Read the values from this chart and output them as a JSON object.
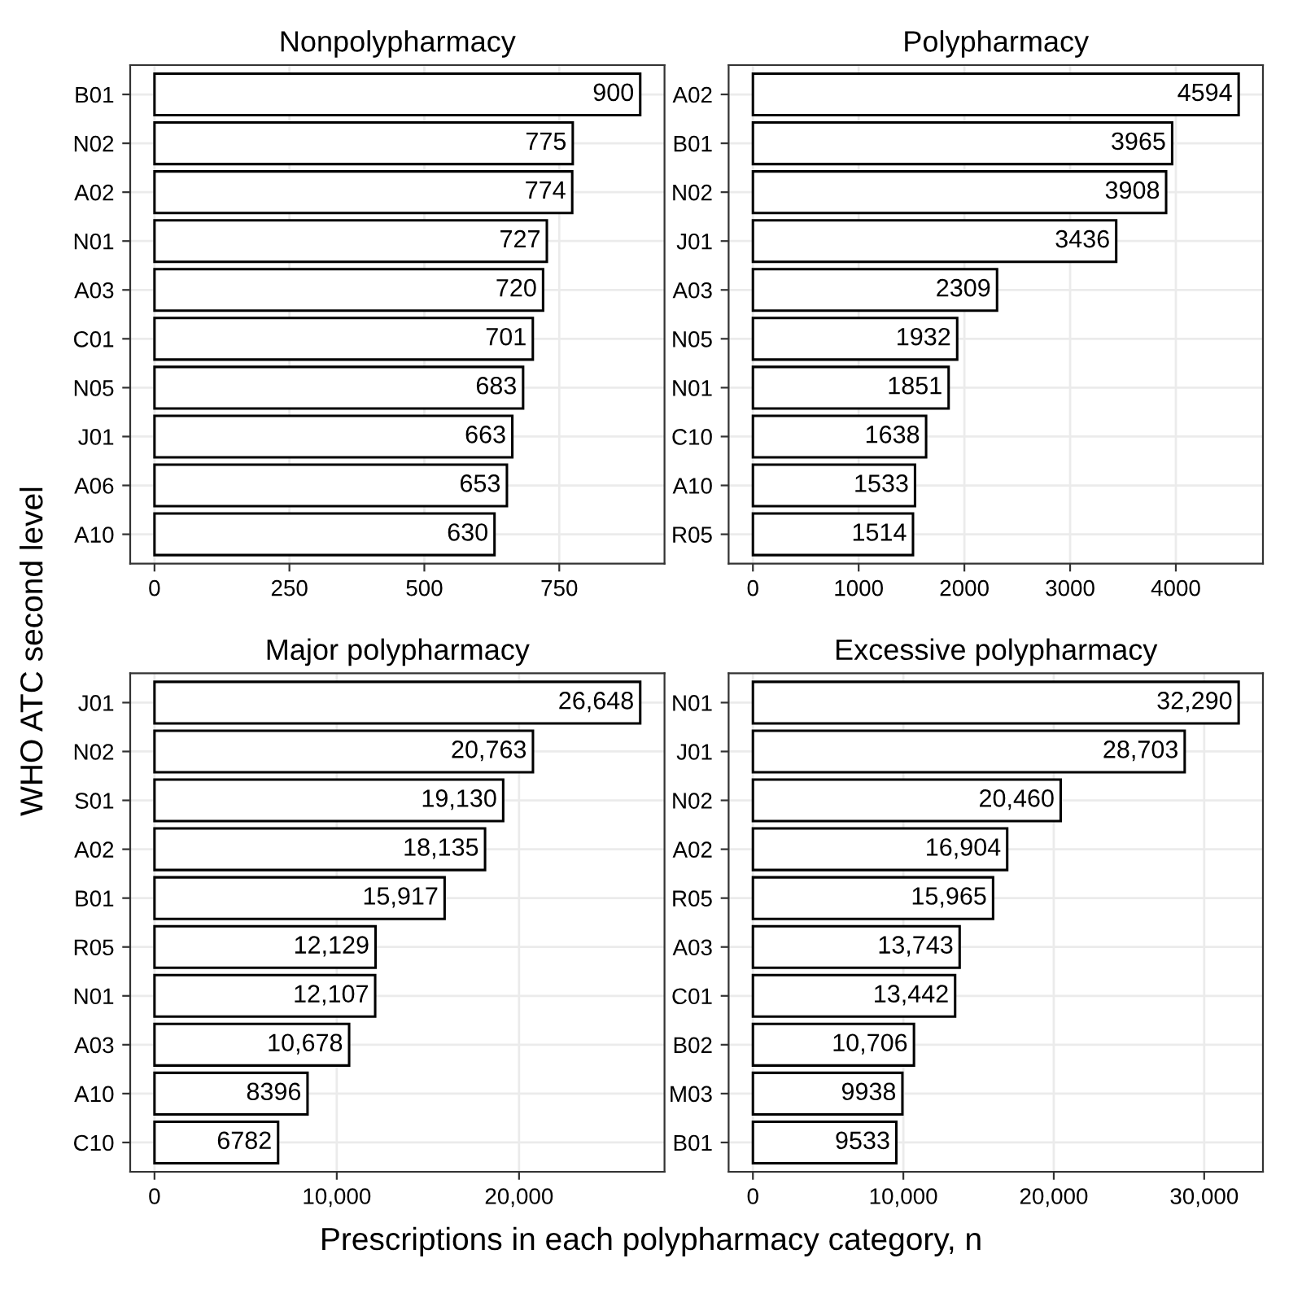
{
  "chart_data": [
    {
      "type": "bar",
      "orientation": "horizontal",
      "title": "Nonpolypharmacy",
      "xlabel": "Prescriptions in each polypharmacy category, n",
      "ylabel": "WHO ATC second level",
      "categories": [
        "B01",
        "N02",
        "A02",
        "N01",
        "A03",
        "C01",
        "N05",
        "J01",
        "A06",
        "A10"
      ],
      "values": [
        900,
        775,
        774,
        727,
        720,
        701,
        683,
        663,
        653,
        630
      ],
      "value_labels": [
        "900",
        "775",
        "774",
        "727",
        "720",
        "701",
        "683",
        "663",
        "653",
        "630"
      ],
      "color": "#ffffff",
      "xlim": [
        -45,
        945
      ],
      "xticks": [
        0,
        250,
        500,
        750
      ],
      "grid": true
    },
    {
      "type": "bar",
      "orientation": "horizontal",
      "title": "Polypharmacy",
      "categories": [
        "A02",
        "B01",
        "N02",
        "J01",
        "A03",
        "N05",
        "N01",
        "C10",
        "A10",
        "R05"
      ],
      "values": [
        4594,
        3965,
        3908,
        3436,
        2309,
        1932,
        1851,
        1638,
        1533,
        1514
      ],
      "value_labels": [
        "4594",
        "3965",
        "3908",
        "3436",
        "2309",
        "1932",
        "1851",
        "1638",
        "1533",
        "1514"
      ],
      "color": "#ffffff",
      "xlim": [
        -229.7,
        4823.7
      ],
      "xticks": [
        0,
        1000,
        2000,
        3000,
        4000
      ],
      "grid": true
    },
    {
      "type": "bar",
      "orientation": "horizontal",
      "title": "Major polypharmacy",
      "categories": [
        "J01",
        "N02",
        "S01",
        "A02",
        "B01",
        "R05",
        "N01",
        "A03",
        "A10",
        "C10"
      ],
      "values": [
        26648,
        20763,
        19130,
        18135,
        15917,
        12129,
        12107,
        10678,
        8396,
        6782
      ],
      "value_labels": [
        "26,648",
        "20,763",
        "19,130",
        "18,135",
        "15,917",
        "12,129",
        "12,107",
        "10,678",
        "8396",
        "6782"
      ],
      "color": "#ffffff",
      "xlim": [
        -1332.4,
        27980.4
      ],
      "xticks": [
        0,
        {
          "value": 10000,
          "label": "10,000"
        },
        {
          "value": 20000,
          "label": "20,000"
        }
      ],
      "grid": true
    },
    {
      "type": "bar",
      "orientation": "horizontal",
      "title": "Excessive polypharmacy",
      "categories": [
        "N01",
        "J01",
        "N02",
        "A02",
        "R05",
        "A03",
        "C01",
        "B02",
        "M03",
        "B01"
      ],
      "values": [
        32290,
        28703,
        20460,
        16904,
        15965,
        13743,
        13442,
        10706,
        9938,
        9533
      ],
      "value_labels": [
        "32,290",
        "28,703",
        "20,460",
        "16,904",
        "15,965",
        "13,743",
        "13,442",
        "10,706",
        "9938",
        "9533"
      ],
      "color": "#ffffff",
      "xlim": [
        -1614.5,
        33904.5
      ],
      "xticks": [
        0,
        {
          "value": 10000,
          "label": "10,000"
        },
        {
          "value": 20000,
          "label": "20,000"
        },
        {
          "value": 30000,
          "label": "30,000"
        }
      ],
      "grid": true
    }
  ]
}
